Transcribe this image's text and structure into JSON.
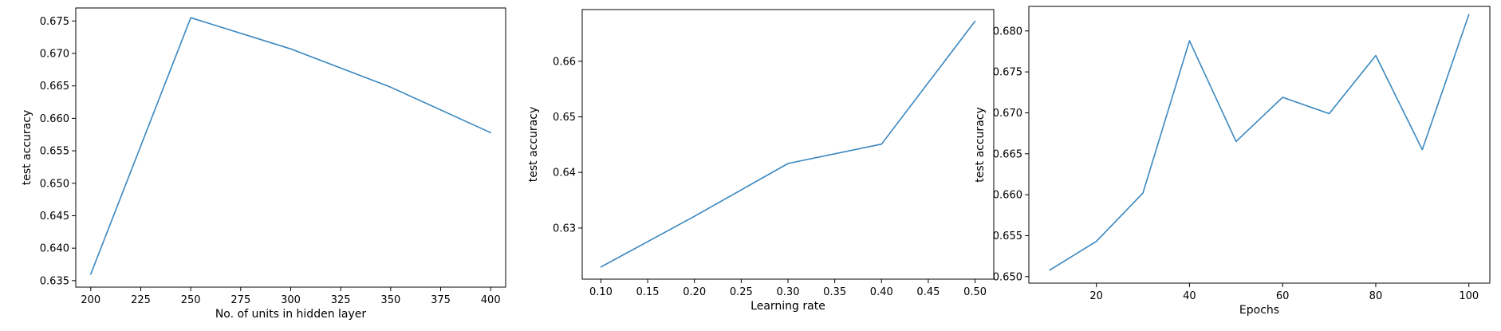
{
  "chart_data": [
    {
      "type": "line",
      "xlabel": "No. of units in hidden layer",
      "ylabel": "test accuracy",
      "xlim": [
        192.5,
        407.5
      ],
      "ylim": [
        0.634,
        0.677
      ],
      "xticks": [
        200,
        225,
        250,
        275,
        300,
        325,
        350,
        375,
        400
      ],
      "xtick_labels": [
        "200",
        "225",
        "250",
        "275",
        "300",
        "325",
        "350",
        "375",
        "400"
      ],
      "yticks": [
        0.635,
        0.64,
        0.645,
        0.65,
        0.655,
        0.66,
        0.665,
        0.67,
        0.675
      ],
      "ytick_labels": [
        "0.635",
        "0.640",
        "0.645",
        "0.650",
        "0.655",
        "0.660",
        "0.665",
        "0.670",
        "0.675"
      ],
      "grid": false,
      "color": "#3a87c0",
      "x": [
        200,
        250,
        300,
        350,
        400
      ],
      "y": [
        0.636,
        0.6755,
        0.6707,
        0.6648,
        0.6578
      ]
    },
    {
      "type": "line",
      "xlabel": "Learning rate",
      "ylabel": "test accuracy",
      "xlim": [
        0.08,
        0.52
      ],
      "ylim": [
        0.6208,
        0.6693
      ],
      "xticks": [
        0.1,
        0.15,
        0.2,
        0.25,
        0.3,
        0.35,
        0.4,
        0.45,
        0.5
      ],
      "xtick_labels": [
        "0.10",
        "0.15",
        "0.20",
        "0.25",
        "0.30",
        "0.35",
        "0.40",
        "0.45",
        "0.50"
      ],
      "yticks": [
        0.63,
        0.64,
        0.65,
        0.66
      ],
      "ytick_labels": [
        "0.63",
        "0.64",
        "0.65",
        "0.66"
      ],
      "grid": false,
      "color": "#3a87c0",
      "x": [
        0.1,
        0.2,
        0.3,
        0.4,
        0.5
      ],
      "y": [
        0.623,
        0.6321,
        0.6416,
        0.6451,
        0.6672
      ]
    },
    {
      "type": "line",
      "xlabel": "Epochs",
      "ylabel": "test accuracy",
      "xlim": [
        5.5,
        104.5
      ],
      "ylim": [
        0.6492,
        0.683
      ],
      "xticks": [
        20,
        40,
        60,
        80,
        100
      ],
      "xtick_labels": [
        "20",
        "40",
        "60",
        "80",
        "100"
      ],
      "yticks": [
        0.65,
        0.655,
        0.66,
        0.665,
        0.67,
        0.675,
        0.68
      ],
      "ytick_labels": [
        "0.650",
        "0.655",
        "0.660",
        "0.665",
        "0.670",
        "0.675",
        "0.680"
      ],
      "grid": false,
      "color": "#3a87c0",
      "x": [
        10,
        20,
        30,
        40,
        50,
        60,
        70,
        80,
        90,
        100
      ],
      "y": [
        0.6508,
        0.6543,
        0.6602,
        0.6788,
        0.6665,
        0.6719,
        0.6699,
        0.677,
        0.6655,
        0.682
      ]
    }
  ]
}
